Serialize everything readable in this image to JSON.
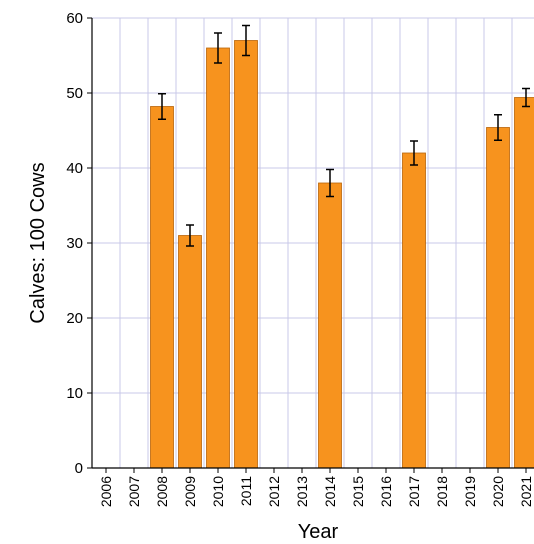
{
  "chart_data": {
    "type": "bar",
    "xlabel": "Year",
    "ylabel": "Calves: 100 Cows",
    "ylim": [
      0,
      60
    ],
    "yticks": [
      0,
      10,
      20,
      30,
      40,
      50,
      60
    ],
    "grid": true,
    "categories": [
      "2006",
      "2007",
      "2008",
      "2009",
      "2010",
      "2011",
      "2012",
      "2013",
      "2014",
      "2015",
      "2016",
      "2017",
      "2018",
      "2019",
      "2020",
      "2021"
    ],
    "values": [
      null,
      null,
      48.2,
      31.0,
      56.0,
      57.0,
      null,
      null,
      38.0,
      null,
      null,
      42.0,
      null,
      null,
      45.4,
      49.4
    ],
    "error": [
      null,
      null,
      1.7,
      1.4,
      2.0,
      2.0,
      null,
      null,
      1.8,
      null,
      null,
      1.6,
      null,
      null,
      1.7,
      1.2
    ],
    "colors": {
      "bar": "#f7931e",
      "bar_edge": "#b8650a",
      "grid": "#c9c9e8"
    }
  }
}
